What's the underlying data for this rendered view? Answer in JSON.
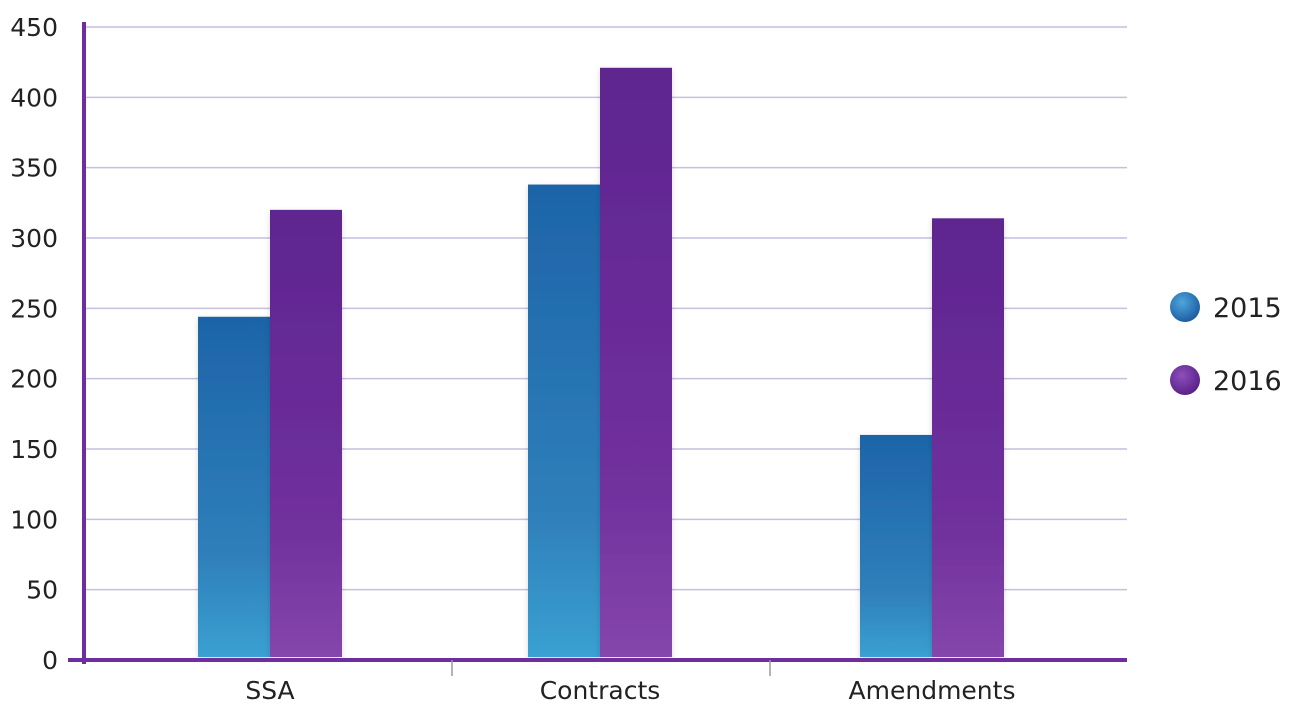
{
  "chart_data": {
    "type": "bar",
    "title": "",
    "xlabel": "",
    "ylabel": "",
    "categories": [
      "SSA",
      "Contracts",
      "Amendments"
    ],
    "series": [
      {
        "name": "2015",
        "values": [
          244,
          338,
          160
        ],
        "color": "#2a75b3"
      },
      {
        "name": "2016",
        "values": [
          320,
          421,
          314
        ],
        "color": "#6b2a98"
      }
    ],
    "ylim": [
      0,
      450
    ],
    "yticks": [
      "0",
      "50",
      "100",
      "150",
      "200",
      "250",
      "300",
      "350",
      "400",
      "450"
    ],
    "grid": true,
    "legend_position": "right",
    "colors": {
      "axis": "#6f2ea0",
      "grid": "#c8bedd",
      "text": "#222222"
    }
  }
}
